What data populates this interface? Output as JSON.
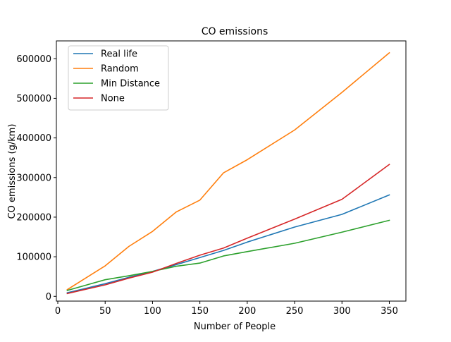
{
  "chart_data": {
    "type": "line",
    "title": "CO emissions",
    "xlabel": "Number of People",
    "ylabel": "CO emissions (g/km)",
    "xlim": [
      -1.5,
      367.5
    ],
    "ylim": [
      -12000,
      645000
    ],
    "xticks": [
      0,
      50,
      100,
      150,
      200,
      250,
      300,
      350
    ],
    "yticks": [
      0,
      100000,
      200000,
      300000,
      400000,
      500000,
      600000
    ],
    "grid": false,
    "legend_position": "top-left",
    "series": [
      {
        "name": "Real life",
        "color": "#1f77b4",
        "x": [
          10,
          50,
          75,
          100,
          125,
          150,
          175,
          200,
          250,
          300,
          350
        ],
        "y": [
          9000,
          32000,
          48000,
          63000,
          80000,
          98000,
          116000,
          137000,
          175000,
          207000,
          256000
        ]
      },
      {
        "name": "Random",
        "color": "#ff7f0e",
        "x": [
          10,
          50,
          75,
          100,
          125,
          150,
          175,
          200,
          250,
          300,
          350
        ],
        "y": [
          17000,
          77000,
          126000,
          164000,
          213000,
          243000,
          312000,
          345000,
          420000,
          515000,
          615000
        ]
      },
      {
        "name": "Min Distance",
        "color": "#2ca02c",
        "x": [
          10,
          50,
          75,
          100,
          125,
          150,
          175,
          200,
          250,
          300,
          350
        ],
        "y": [
          15000,
          42000,
          52000,
          63000,
          76000,
          84000,
          102000,
          113000,
          134000,
          162000,
          192000
        ]
      },
      {
        "name": "None",
        "color": "#d62728",
        "x": [
          10,
          50,
          75,
          100,
          125,
          150,
          175,
          200,
          250,
          300,
          350
        ],
        "y": [
          7000,
          29000,
          46000,
          61000,
          83000,
          104000,
          122000,
          147000,
          195000,
          245000,
          333000
        ]
      }
    ]
  }
}
